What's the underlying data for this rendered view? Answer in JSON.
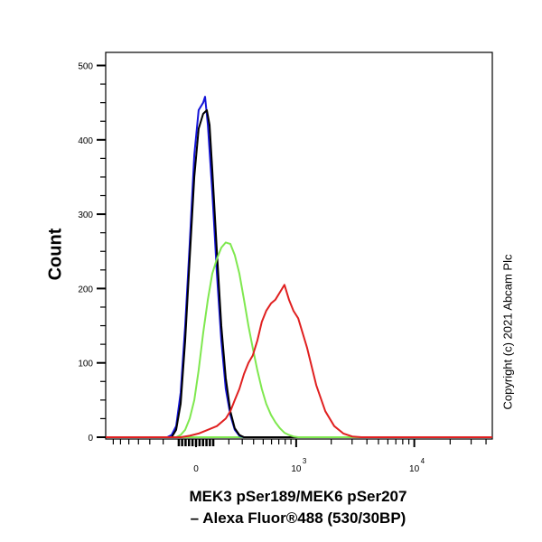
{
  "chart_data": {
    "type": "line",
    "title": "",
    "xlabel_line1": "MEK3 pSer189/MEK6 pSer207",
    "xlabel_line2": "– Alexa Fluor®488 (530/30BP)",
    "ylabel": "Count",
    "xscale": "biexponential",
    "xlim": [
      -740,
      44000
    ],
    "ylim": [
      0,
      520
    ],
    "yticks": [
      0,
      100,
      200,
      300,
      400,
      500
    ],
    "xticks": [
      {
        "value": 0,
        "label": "0",
        "exp": ""
      },
      {
        "value": 1000,
        "label": "10",
        "exp": "3"
      },
      {
        "value": 10000,
        "label": "10",
        "exp": "4"
      }
    ],
    "grid": false,
    "series": [
      {
        "color": "#1414d8",
        "x": [
          -173,
          -144,
          -116,
          -89,
          -62,
          -36,
          -10,
          15,
          41,
          52,
          68,
          94,
          122,
          150,
          179,
          210,
          242,
          277,
          314
        ],
        "y": [
          0,
          3,
          15,
          60,
          150,
          260,
          380,
          440,
          450,
          458,
          420,
          330,
          220,
          130,
          65,
          30,
          10,
          2,
          0
        ]
      },
      {
        "color": "#000000",
        "x": [
          -144,
          -116,
          -89,
          -62,
          -36,
          -10,
          15,
          41,
          62,
          78,
          94,
          122,
          150,
          179,
          210,
          242,
          277,
          314
        ],
        "y": [
          0,
          10,
          45,
          130,
          240,
          350,
          415,
          435,
          440,
          420,
          360,
          250,
          150,
          80,
          35,
          12,
          3,
          0
        ]
      },
      {
        "color": "#7fe84f",
        "x": [
          -116,
          -89,
          -62,
          -36,
          -10,
          15,
          41,
          68,
          94,
          122,
          150,
          179,
          210,
          242,
          277,
          314,
          352,
          392,
          437,
          484,
          534,
          593,
          652,
          717,
          788,
          864,
          947,
          1041
        ],
        "y": [
          0,
          3,
          10,
          25,
          50,
          90,
          140,
          185,
          220,
          240,
          255,
          262,
          260,
          245,
          220,
          185,
          150,
          120,
          90,
          65,
          45,
          30,
          20,
          12,
          6,
          3,
          1,
          0
        ]
      },
      {
        "color": "#e02020",
        "x": [
          -89,
          -36,
          15,
          68,
          122,
          179,
          210,
          242,
          277,
          314,
          352,
          392,
          437,
          484,
          534,
          593,
          652,
          717,
          788,
          864,
          947,
          1041,
          1245,
          1490,
          1779,
          2121,
          2531,
          3009,
          3599
        ],
        "y": [
          0,
          2,
          5,
          10,
          15,
          25,
          35,
          50,
          65,
          85,
          100,
          110,
          130,
          155,
          170,
          180,
          185,
          195,
          205,
          185,
          170,
          160,
          120,
          70,
          35,
          15,
          5,
          1,
          0
        ]
      }
    ]
  },
  "copyright": "Copyright (c) 2021 Abcam Plc"
}
